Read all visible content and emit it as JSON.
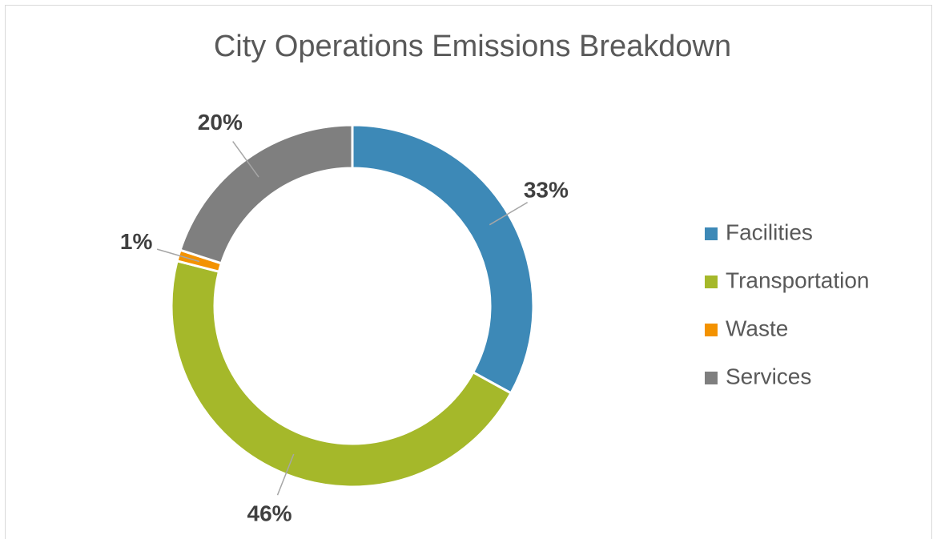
{
  "chart_data": {
    "type": "donut",
    "title": "City Operations Emissions Breakdown",
    "categories": [
      "Facilities",
      "Transportation",
      "Waste",
      "Services"
    ],
    "values": [
      33,
      46,
      1,
      20
    ],
    "value_labels": [
      "33%",
      "46%",
      "1%",
      "20%"
    ],
    "colors": [
      "#3d89b7",
      "#a5b82a",
      "#f39200",
      "#7f7f7f"
    ],
    "legend": "right"
  }
}
